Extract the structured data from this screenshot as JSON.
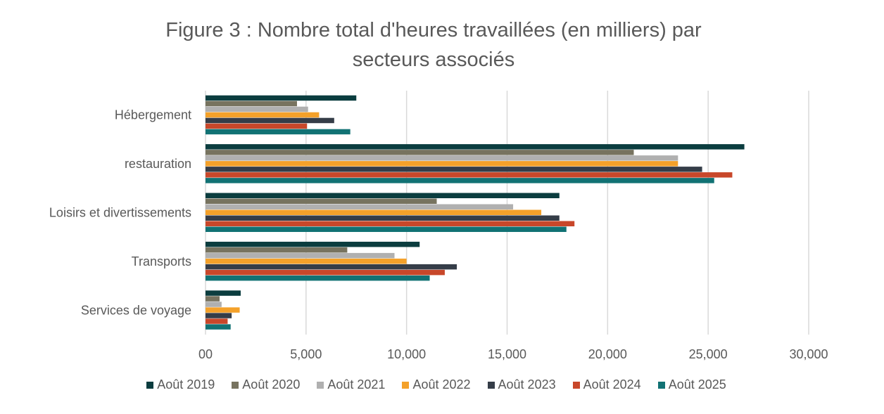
{
  "chart_data": {
    "type": "bar",
    "orientation": "horizontal",
    "title_lines": [
      "Figure 3 : Nombre total d'heures travaillées (en milliers) par",
      "secteurs associés"
    ],
    "categories": [
      "Hébergement",
      "restauration",
      "Loisirs et divertissements",
      "Transports",
      "Services de voyage"
    ],
    "x_ticks": [
      "00",
      "5,000",
      "10,000",
      "15,000",
      "20,000",
      "25,000",
      "30,000"
    ],
    "xlim": [
      0,
      30000
    ],
    "grid": "vertical",
    "legend_position": "bottom",
    "series": [
      {
        "name": "Août 2019",
        "color": "#0b3d3f",
        "values": [
          7500,
          26800,
          17600,
          10650,
          1750
        ]
      },
      {
        "name": "Août 2020",
        "color": "#77735f",
        "values": [
          4550,
          21300,
          11500,
          7050,
          700
        ]
      },
      {
        "name": "Août 2021",
        "color": "#b0b0b0",
        "values": [
          5100,
          23500,
          15300,
          9400,
          800
        ]
      },
      {
        "name": "Août 2022",
        "color": "#f4a12a",
        "values": [
          5650,
          23500,
          16700,
          10000,
          1700
        ]
      },
      {
        "name": "Août 2023",
        "color": "#353d48",
        "values": [
          6400,
          24700,
          17600,
          12500,
          1300
        ]
      },
      {
        "name": "Août 2024",
        "color": "#c8472a",
        "values": [
          5050,
          26200,
          18350,
          11900,
          1100
        ]
      },
      {
        "name": "Août 2025",
        "color": "#117274",
        "values": [
          7200,
          25300,
          17950,
          11150,
          1250
        ]
      }
    ]
  }
}
